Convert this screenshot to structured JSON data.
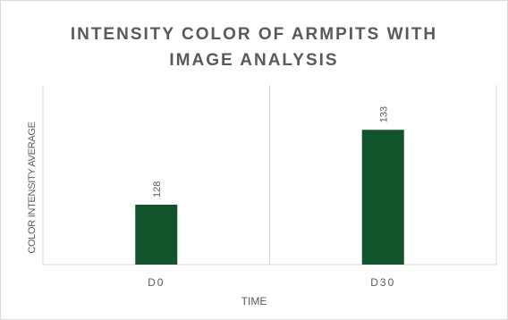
{
  "chart_data": {
    "type": "bar",
    "title_lines": [
      "INTENSITY COLOR OF ARMPITS WITH",
      "IMAGE ANALYSIS"
    ],
    "categories": [
      "D0",
      "D30"
    ],
    "values": [
      128,
      133
    ],
    "xlabel": "TIME",
    "ylabel": "COLOR INTENSITY AVERAGE",
    "ylim": [
      124,
      136
    ],
    "grid": true,
    "legend": "none",
    "bar_color": "#11532b",
    "gridline_color": "#d9d9d9"
  }
}
